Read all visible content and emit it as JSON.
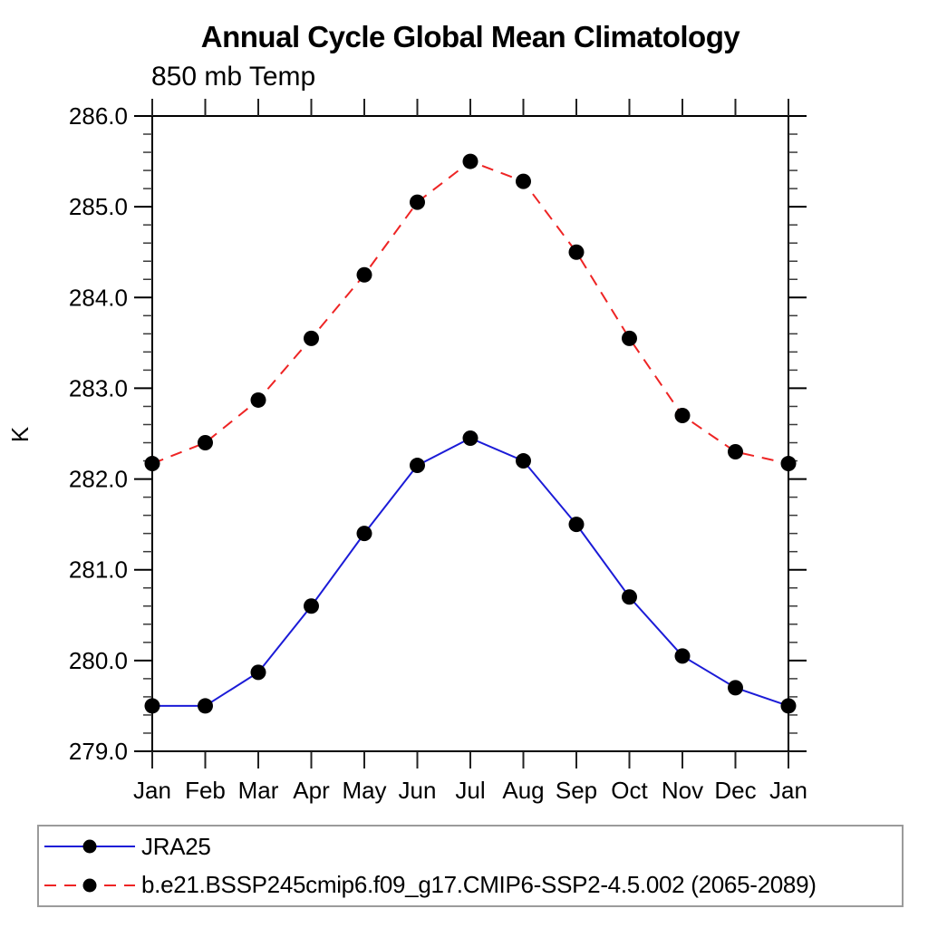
{
  "title": "Annual Cycle Global Mean Climatology",
  "subtitle": "850 mb Temp",
  "chart_data": {
    "type": "line",
    "title": "Annual Cycle Global Mean Climatology",
    "subtitle": "850 mb Temp",
    "xlabel": "",
    "ylabel": "K",
    "x_tick_labels": [
      "Jan",
      "Feb",
      "Mar",
      "Apr",
      "May",
      "Jun",
      "Jul",
      "Aug",
      "Sep",
      "Oct",
      "Nov",
      "Dec",
      "Jan"
    ],
    "y_tick_labels": [
      "279.0",
      "280.0",
      "281.0",
      "282.0",
      "283.0",
      "284.0",
      "285.0",
      "286.0"
    ],
    "ylim": [
      279.0,
      286.0
    ],
    "y_major_step": 1.0,
    "y_minor_step": 0.2,
    "grid": false,
    "legend_position": "bottom-left-box",
    "axis_color": "#000000",
    "marker": "filled-circle",
    "marker_color": "#000000",
    "series": [
      {
        "key": "jra25",
        "name": "JRA25",
        "color": "#1b1bd7",
        "style": "solid",
        "values": [
          279.5,
          279.5,
          279.87,
          280.6,
          281.4,
          282.15,
          282.45,
          282.2,
          281.5,
          280.7,
          280.05,
          279.7,
          279.5
        ]
      },
      {
        "key": "ssp245",
        "name": "b.e21.BSSP245cmip6.f09_g17.CMIP6-SSP2-4.5.002 (2065-2089)",
        "color": "#ee2424",
        "style": "dashed",
        "values": [
          282.17,
          282.4,
          282.87,
          283.55,
          284.25,
          285.05,
          285.5,
          285.28,
          284.5,
          283.55,
          282.7,
          282.3,
          282.17
        ]
      }
    ]
  }
}
